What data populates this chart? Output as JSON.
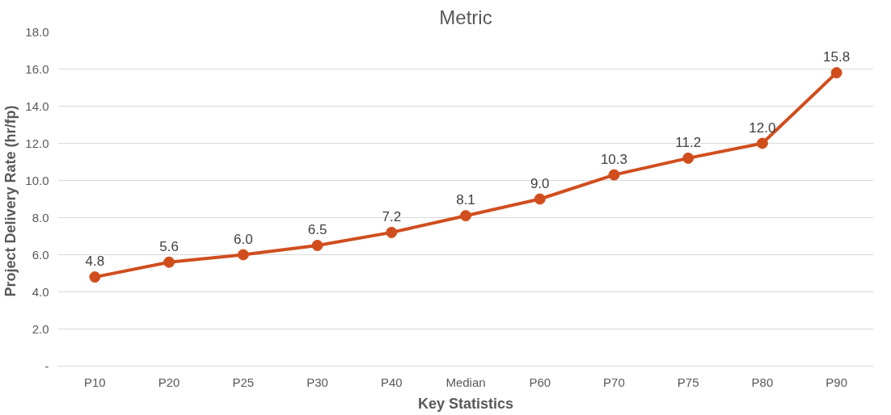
{
  "chart_data": {
    "type": "line",
    "title": "Metric",
    "xlabel": "Key Statistics",
    "ylabel": "Project Delivery Rate  (hr/fp)",
    "categories": [
      "P10",
      "P20",
      "P25",
      "P30",
      "P40",
      "Median",
      "P60",
      "P70",
      "P75",
      "P80",
      "P90"
    ],
    "series": [
      {
        "color": "#d04e1e",
        "values": [
          4.8,
          5.6,
          6.0,
          6.5,
          7.2,
          8.1,
          9.0,
          10.3,
          11.2,
          12.0,
          15.8
        ],
        "value_labels": [
          "4.8",
          "5.6",
          "6.0",
          "6.5",
          "7.2",
          "8.1",
          "9.0",
          "10.3",
          "11.2",
          "12.0",
          "15.8"
        ]
      }
    ],
    "ylim": [
      0,
      18
    ],
    "yticks": [
      {
        "value": 0,
        "label": "-"
      },
      {
        "value": 2,
        "label": "2.0"
      },
      {
        "value": 4,
        "label": "4.0"
      },
      {
        "value": 6,
        "label": "6.0"
      },
      {
        "value": 8,
        "label": "8.0"
      },
      {
        "value": 10,
        "label": "10.0"
      },
      {
        "value": 12,
        "label": "12.0"
      },
      {
        "value": 14,
        "label": "14.0"
      },
      {
        "value": 16,
        "label": "16.0"
      },
      {
        "value": 18,
        "label": "18.0"
      }
    ],
    "grid": "y",
    "marker": "circle",
    "line_style": "solid"
  }
}
